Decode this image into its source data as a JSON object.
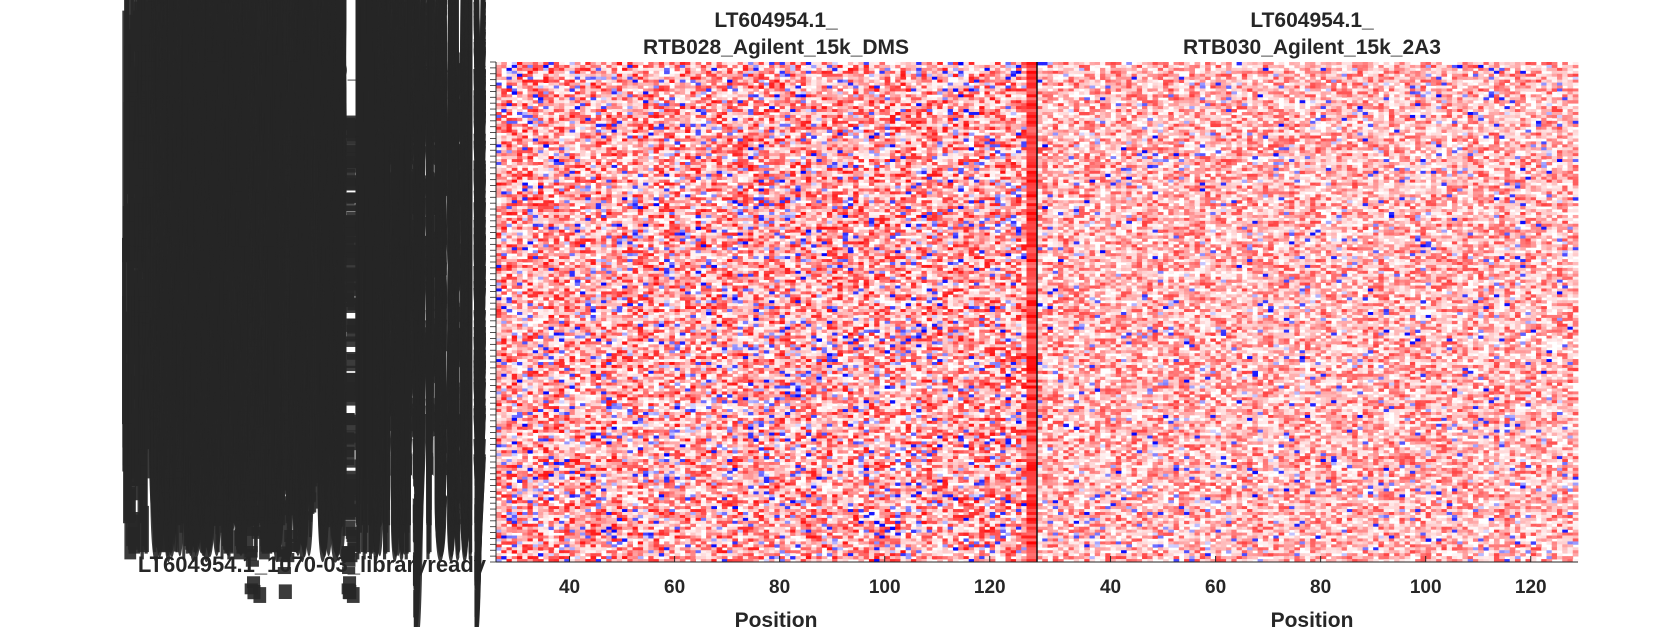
{
  "chart_data": [
    {
      "type": "heatmap",
      "title_line1": "LT604954.1_",
      "title_line2": "RTB028_Agilent_15k_DMS",
      "xlabel": "Position",
      "ylabel": "",
      "xlim": [
        26,
        129
      ],
      "xticks": [
        40,
        60,
        80,
        100,
        120
      ],
      "colormap": {
        "low": "#0000ff",
        "mid": "#ffffff",
        "high": "#ff0000"
      },
      "texture": {
        "seed": 7,
        "intensity": 0.62,
        "blue_fraction": 0.11,
        "dark_edge": true
      }
    },
    {
      "type": "heatmap",
      "title_line1": "LT604954.1_",
      "title_line2": "RTB030_Agilent_15k_2A3",
      "xlabel": "Position",
      "ylabel": "",
      "xlim": [
        26,
        129
      ],
      "xticks": [
        40,
        60,
        80,
        100,
        120
      ],
      "colormap": {
        "low": "#0000ff",
        "mid": "#ffffff",
        "high": "#ff0000"
      },
      "texture": {
        "seed": 19,
        "intensity": 0.5,
        "blue_fraction": 0.05,
        "dark_edge": false
      }
    }
  ],
  "y_tick_labels_overlapping": [
    "LT604954.1_0+00_libraryready",
    "LT604954.1_1070-03_libraryready"
  ]
}
